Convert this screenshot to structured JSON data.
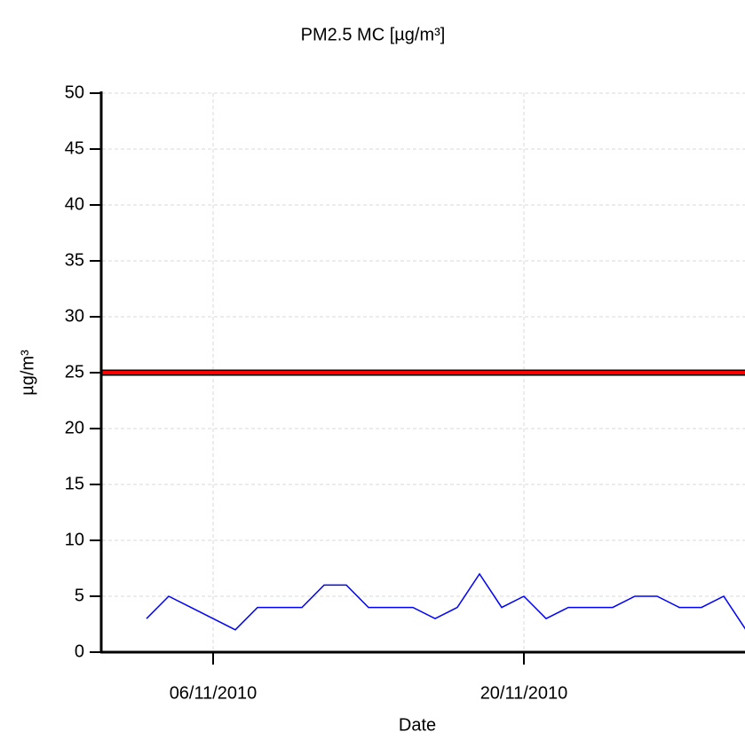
{
  "chart_data": {
    "type": "line",
    "title": "PM2.5 MC [µg/m³]",
    "x_label": "Date",
    "y_label": "µg/m³",
    "x": [
      "03/11/2010",
      "04/11/2010",
      "05/11/2010",
      "06/11/2010",
      "07/11/2010",
      "08/11/2010",
      "09/11/2010",
      "10/11/2010",
      "11/11/2010",
      "12/11/2010",
      "13/11/2010",
      "14/11/2010",
      "15/11/2010",
      "16/11/2010",
      "17/11/2010",
      "18/11/2010",
      "19/11/2010",
      "20/11/2010",
      "21/11/2010",
      "22/11/2010",
      "23/11/2010",
      "24/11/2010",
      "25/11/2010",
      "26/11/2010",
      "27/11/2010",
      "28/11/2010",
      "29/11/2010",
      "30/11/2010"
    ],
    "series": [
      {
        "color": "#0000ff",
        "values": [
          3,
          5,
          4,
          3,
          2,
          4,
          4,
          4,
          6,
          6,
          4,
          4,
          4,
          3,
          4,
          7,
          4,
          5,
          3,
          4,
          4,
          4,
          5,
          5,
          4,
          4,
          5,
          2
        ]
      }
    ],
    "xlim": [
      "01/11/2010",
      "30/11/2010"
    ],
    "xticks": [
      "06/11/2010",
      "20/11/2010"
    ],
    "ylim": [
      0,
      50
    ],
    "yticks": [
      0,
      5,
      10,
      15,
      20,
      25,
      30,
      35,
      40,
      45,
      50
    ],
    "grid": true,
    "limit_line": {
      "value": 25,
      "color": "#ff0000"
    }
  }
}
